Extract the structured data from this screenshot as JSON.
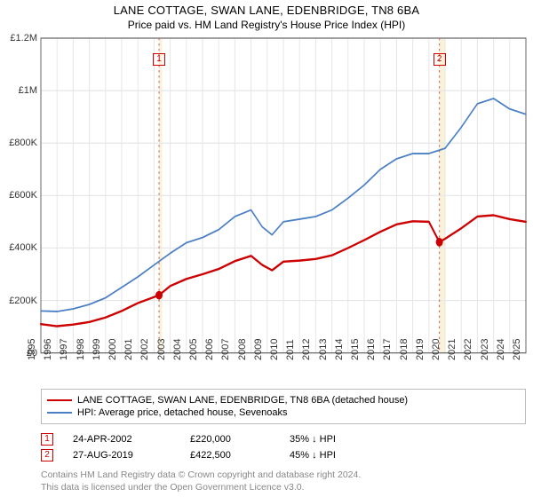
{
  "title": "LANE COTTAGE, SWAN LANE, EDENBRIDGE, TN8 6BA",
  "subtitle": "Price paid vs. HM Land Registry's House Price Index (HPI)",
  "chart": {
    "type": "line",
    "background_color": "#ffffff",
    "grid_color": "#e6e6e6",
    "axis_color": "#666666",
    "title_fontsize": 13,
    "subtitle_fontsize": 12,
    "tick_fontsize": 11,
    "x": {
      "min": 1995,
      "max": 2025,
      "step": 1,
      "rotation": -90,
      "ticks": [
        1995,
        1996,
        1997,
        1998,
        1999,
        2000,
        2001,
        2002,
        2003,
        2004,
        2005,
        2006,
        2007,
        2008,
        2009,
        2010,
        2011,
        2012,
        2013,
        2014,
        2015,
        2016,
        2017,
        2018,
        2019,
        2020,
        2021,
        2022,
        2023,
        2024,
        2025
      ]
    },
    "y": {
      "min": 0,
      "max": 1200000,
      "step": 200000,
      "labels": [
        "£0",
        "£200K",
        "£400K",
        "£600K",
        "£800K",
        "£1M",
        "£1.2M"
      ]
    },
    "shade_bands": [
      {
        "from": 2002.31,
        "to": 2002.5,
        "color": "#f3e8b8"
      },
      {
        "from": 2019.65,
        "to": 2020.0,
        "color": "#f3e8b8"
      }
    ],
    "series": [
      {
        "name": "property_price",
        "label": "LANE COTTAGE, SWAN LANE, EDENBRIDGE, TN8 6BA (detached house)",
        "color": "#cc0000",
        "line_width": 2,
        "points": [
          [
            1995.0,
            110000
          ],
          [
            1996.0,
            102000
          ],
          [
            1997.0,
            108000
          ],
          [
            1998.0,
            118000
          ],
          [
            1999.0,
            135000
          ],
          [
            2000.0,
            160000
          ],
          [
            2001.0,
            190000
          ],
          [
            2002.31,
            220000
          ],
          [
            2003.0,
            255000
          ],
          [
            2004.0,
            282000
          ],
          [
            2005.0,
            300000
          ],
          [
            2006.0,
            320000
          ],
          [
            2007.0,
            350000
          ],
          [
            2008.0,
            370000
          ],
          [
            2008.7,
            335000
          ],
          [
            2009.3,
            315000
          ],
          [
            2010.0,
            348000
          ],
          [
            2011.0,
            352000
          ],
          [
            2012.0,
            358000
          ],
          [
            2013.0,
            372000
          ],
          [
            2014.0,
            400000
          ],
          [
            2015.0,
            430000
          ],
          [
            2016.0,
            462000
          ],
          [
            2017.0,
            490000
          ],
          [
            2018.0,
            502000
          ],
          [
            2019.0,
            500000
          ],
          [
            2019.65,
            422500
          ],
          [
            2020.0,
            435000
          ],
          [
            2021.0,
            475000
          ],
          [
            2022.0,
            520000
          ],
          [
            2023.0,
            525000
          ],
          [
            2024.0,
            510000
          ],
          [
            2025.0,
            500000
          ]
        ]
      },
      {
        "name": "hpi_sevenoaks",
        "label": "HPI: Average price, detached house, Sevenoaks",
        "color": "#4a7fc4",
        "line_width": 1.5,
        "points": [
          [
            1995.0,
            160000
          ],
          [
            1996.0,
            158000
          ],
          [
            1997.0,
            168000
          ],
          [
            1998.0,
            185000
          ],
          [
            1999.0,
            210000
          ],
          [
            2000.0,
            250000
          ],
          [
            2001.0,
            290000
          ],
          [
            2002.0,
            335000
          ],
          [
            2003.0,
            380000
          ],
          [
            2004.0,
            420000
          ],
          [
            2005.0,
            440000
          ],
          [
            2006.0,
            470000
          ],
          [
            2007.0,
            520000
          ],
          [
            2008.0,
            545000
          ],
          [
            2008.7,
            480000
          ],
          [
            2009.3,
            450000
          ],
          [
            2010.0,
            500000
          ],
          [
            2011.0,
            510000
          ],
          [
            2012.0,
            520000
          ],
          [
            2013.0,
            545000
          ],
          [
            2014.0,
            590000
          ],
          [
            2015.0,
            640000
          ],
          [
            2016.0,
            700000
          ],
          [
            2017.0,
            740000
          ],
          [
            2018.0,
            760000
          ],
          [
            2019.0,
            760000
          ],
          [
            2020.0,
            780000
          ],
          [
            2021.0,
            860000
          ],
          [
            2022.0,
            950000
          ],
          [
            2023.0,
            970000
          ],
          [
            2024.0,
            930000
          ],
          [
            2025.0,
            910000
          ]
        ]
      }
    ],
    "markers": [
      {
        "n": "1",
        "x": 2002.31,
        "y": 220000,
        "label_y": 1120000,
        "dot_color": "#cc0000",
        "box_color": "#cc0000",
        "line_color": "#c06060"
      },
      {
        "n": "2",
        "x": 2019.65,
        "y": 422500,
        "label_y": 1120000,
        "dot_color": "#cc0000",
        "box_color": "#cc0000",
        "line_color": "#c06060"
      }
    ]
  },
  "legend": {
    "border_color": "#bbbbbb",
    "items": [
      {
        "color": "#cc0000",
        "label": "LANE COTTAGE, SWAN LANE, EDENBRIDGE, TN8 6BA (detached house)"
      },
      {
        "color": "#4a7fc4",
        "label": "HPI: Average price, detached house, Sevenoaks"
      }
    ]
  },
  "sales": [
    {
      "n": "1",
      "box_color": "#cc0000",
      "date": "24-APR-2002",
      "price": "£220,000",
      "delta": "35% ↓ HPI"
    },
    {
      "n": "2",
      "box_color": "#cc0000",
      "date": "27-AUG-2019",
      "price": "£422,500",
      "delta": "45% ↓ HPI"
    }
  ],
  "footnote_line1": "Contains HM Land Registry data © Crown copyright and database right 2024.",
  "footnote_line2": "This data is licensed under the Open Government Licence v3.0."
}
